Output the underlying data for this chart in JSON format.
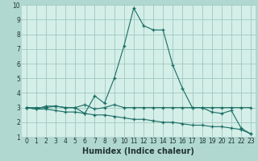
{
  "xlabel": "Humidex (Indice chaleur)",
  "ylabel": "",
  "xlim": [
    -0.5,
    23.5
  ],
  "ylim": [
    1,
    10
  ],
  "yticks": [
    1,
    2,
    3,
    4,
    5,
    6,
    7,
    8,
    9,
    10
  ],
  "xticks": [
    0,
    1,
    2,
    3,
    4,
    5,
    6,
    7,
    8,
    9,
    10,
    11,
    12,
    13,
    14,
    15,
    16,
    17,
    18,
    19,
    20,
    21,
    22,
    23
  ],
  "background_color": "#b0d8d0",
  "plot_bg_color": "#d4eee8",
  "grid_color": "#a0c8c0",
  "line_color": "#1a6e64",
  "line1_x": [
    0,
    1,
    2,
    3,
    4,
    5,
    6,
    7,
    8,
    9,
    10,
    11,
    12,
    13,
    14,
    15,
    16,
    17,
    18,
    19,
    20,
    21,
    22,
    23
  ],
  "line1_y": [
    3.0,
    2.9,
    3.1,
    3.1,
    3.0,
    3.0,
    2.6,
    3.8,
    3.3,
    5.0,
    7.2,
    9.8,
    8.6,
    8.3,
    8.3,
    5.9,
    4.3,
    3.0,
    3.0,
    2.7,
    2.6,
    2.8,
    1.6,
    1.2
  ],
  "line2_x": [
    0,
    1,
    2,
    3,
    4,
    5,
    6,
    7,
    8,
    9,
    10,
    11,
    12,
    13,
    14,
    15,
    16,
    17,
    18,
    19,
    20,
    21,
    22,
    23
  ],
  "line2_y": [
    3.0,
    3.0,
    3.0,
    3.1,
    3.0,
    3.0,
    3.2,
    2.9,
    3.0,
    3.2,
    3.0,
    3.0,
    3.0,
    3.0,
    3.0,
    3.0,
    3.0,
    3.0,
    3.0,
    3.0,
    3.0,
    3.0,
    3.0,
    3.0
  ],
  "line3_x": [
    0,
    1,
    2,
    3,
    4,
    5,
    6,
    7,
    8,
    9,
    10,
    11,
    12,
    13,
    14,
    15,
    16,
    17,
    18,
    19,
    20,
    21,
    22,
    23
  ],
  "line3_y": [
    3.0,
    2.9,
    2.9,
    2.8,
    2.7,
    2.7,
    2.6,
    2.5,
    2.5,
    2.4,
    2.3,
    2.2,
    2.2,
    2.1,
    2.0,
    2.0,
    1.9,
    1.8,
    1.8,
    1.7,
    1.7,
    1.6,
    1.5,
    1.2
  ],
  "tick_fontsize": 5.5,
  "xlabel_fontsize": 7,
  "tick_color": "#223333"
}
